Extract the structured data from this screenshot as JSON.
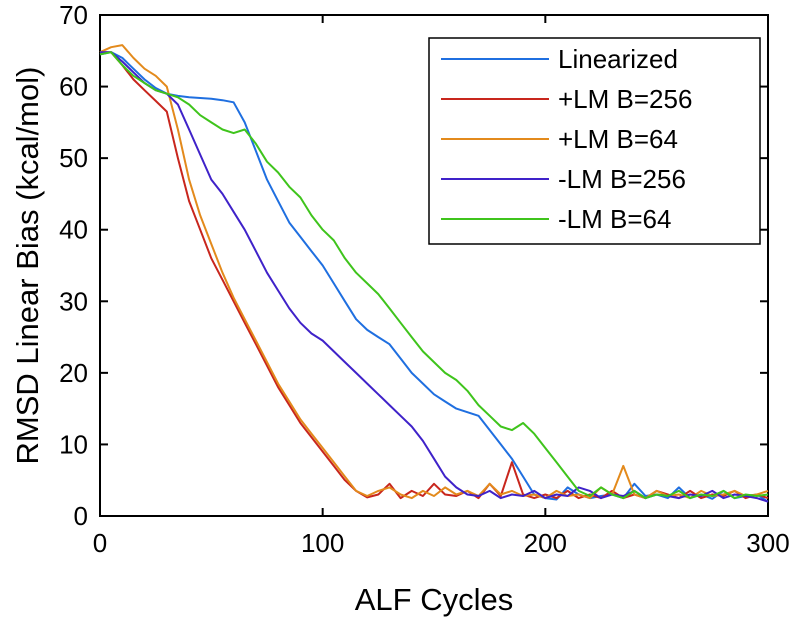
{
  "chart_data": {
    "type": "line",
    "title": "",
    "xlabel": "ALF Cycles",
    "ylabel": "RMSD Linear Bias (kcal/mol)",
    "xlim": [
      0,
      300
    ],
    "ylim": [
      0,
      70
    ],
    "xticks": [
      0,
      100,
      200,
      300
    ],
    "yticks": [
      0,
      10,
      20,
      30,
      40,
      50,
      60,
      70
    ],
    "grid": false,
    "legend_position": "top-right",
    "series": [
      {
        "name": "Linearized",
        "color": "#1f6fe0",
        "x": [
          0,
          5,
          10,
          15,
          20,
          25,
          30,
          35,
          40,
          45,
          50,
          55,
          60,
          65,
          70,
          75,
          80,
          85,
          90,
          95,
          100,
          105,
          110,
          115,
          120,
          125,
          130,
          135,
          140,
          145,
          150,
          155,
          160,
          165,
          170,
          175,
          180,
          185,
          190,
          195,
          200,
          205,
          210,
          215,
          220,
          225,
          230,
          235,
          240,
          245,
          250,
          255,
          260,
          265,
          270,
          275,
          280,
          285,
          290,
          295,
          300
        ],
        "y": [
          64.5,
          64.8,
          64,
          62.5,
          61,
          59.8,
          59,
          58.7,
          58.5,
          58.4,
          58.3,
          58.1,
          57.8,
          55,
          51,
          47,
          44,
          41,
          39,
          37,
          35,
          32.5,
          30,
          27.5,
          26,
          25,
          24,
          22,
          20,
          18.5,
          17,
          16,
          15,
          14.5,
          14,
          12,
          10,
          8,
          5.5,
          3,
          2.5,
          2.3,
          4,
          3,
          2.5,
          2.8,
          3,
          2.5,
          4.5,
          2.8,
          3,
          2.5,
          4,
          2.5,
          3,
          2.4,
          3.5,
          2.5,
          2.8,
          3,
          2
        ]
      },
      {
        "name": "+LM B=256",
        "color": "#c8261d",
        "x": [
          0,
          5,
          10,
          15,
          20,
          25,
          30,
          35,
          40,
          45,
          50,
          55,
          60,
          65,
          70,
          75,
          80,
          85,
          90,
          95,
          100,
          105,
          110,
          115,
          120,
          125,
          130,
          135,
          140,
          145,
          150,
          155,
          160,
          165,
          170,
          175,
          180,
          185,
          190,
          195,
          200,
          205,
          210,
          215,
          220,
          225,
          230,
          235,
          240,
          245,
          250,
          255,
          260,
          265,
          270,
          275,
          280,
          285,
          290,
          295,
          300
        ],
        "y": [
          64.8,
          64.8,
          63,
          61,
          59.5,
          58,
          56.5,
          50,
          44,
          40,
          36,
          33,
          30,
          27,
          24,
          21,
          18,
          15.5,
          13,
          11,
          9,
          7,
          5,
          3.5,
          2.6,
          3,
          4.5,
          2.5,
          3.5,
          2.8,
          4.5,
          3,
          2.8,
          3.5,
          2.5,
          4.5,
          2.8,
          7.5,
          3,
          2.5,
          3,
          2.5,
          3.5,
          2.5,
          3,
          2.5,
          3.5,
          2.5,
          3,
          2.5,
          3.5,
          3,
          2.5,
          3.5,
          2.5,
          3,
          2.8,
          3.5,
          2.5,
          3,
          2.5
        ]
      },
      {
        "name": "+LM B=64",
        "color": "#e38a1c",
        "x": [
          0,
          5,
          10,
          15,
          20,
          25,
          30,
          35,
          40,
          45,
          50,
          55,
          60,
          65,
          70,
          75,
          80,
          85,
          90,
          95,
          100,
          105,
          110,
          115,
          120,
          125,
          130,
          135,
          140,
          145,
          150,
          155,
          160,
          165,
          170,
          175,
          180,
          185,
          190,
          195,
          200,
          205,
          210,
          215,
          220,
          225,
          230,
          235,
          240,
          245,
          250,
          255,
          260,
          265,
          270,
          275,
          280,
          285,
          290,
          295,
          300
        ],
        "y": [
          64.8,
          65.5,
          65.8,
          64,
          62.5,
          61.5,
          60,
          54,
          47,
          42,
          38,
          34,
          30.5,
          27.5,
          24.5,
          21.5,
          18.5,
          16,
          13.5,
          11.5,
          9.5,
          7.5,
          5.5,
          3.5,
          2.8,
          3.5,
          4,
          3,
          2.5,
          3.5,
          2.8,
          4,
          3,
          3.5,
          2.8,
          4.5,
          3,
          3.5,
          2.8,
          3,
          2.5,
          3.5,
          2.8,
          3,
          2.5,
          4,
          3,
          7,
          3,
          2.5,
          3.5,
          2.8,
          3,
          2.5,
          3.5,
          2.8,
          3,
          3.5,
          2.8,
          3,
          3.5
        ]
      },
      {
        "name": "-LM B=256",
        "color": "#3f22c9",
        "x": [
          0,
          5,
          10,
          15,
          20,
          25,
          30,
          35,
          40,
          45,
          50,
          55,
          60,
          65,
          70,
          75,
          80,
          85,
          90,
          95,
          100,
          105,
          110,
          115,
          120,
          125,
          130,
          135,
          140,
          145,
          150,
          155,
          160,
          165,
          170,
          175,
          180,
          185,
          190,
          195,
          200,
          205,
          210,
          215,
          220,
          225,
          230,
          235,
          240,
          245,
          250,
          255,
          260,
          265,
          270,
          275,
          280,
          285,
          290,
          295,
          300
        ],
        "y": [
          64.8,
          64.8,
          63.5,
          62,
          60.5,
          59.5,
          59,
          57.5,
          54,
          50.5,
          47,
          45,
          42.5,
          40,
          37,
          34,
          31.5,
          29,
          27,
          25.5,
          24.5,
          23,
          21.5,
          20,
          18.5,
          17,
          15.5,
          14,
          12.5,
          10.5,
          8,
          5.5,
          4,
          3,
          2.8,
          3.5,
          2.5,
          3,
          2.8,
          3.5,
          2.5,
          3,
          2.8,
          4,
          3.5,
          2.5,
          3,
          2.8,
          3.5,
          2.5,
          3,
          2.8,
          2.5,
          3,
          2.8,
          3.5,
          2.5,
          3,
          2.8,
          2.5,
          2
        ]
      },
      {
        "name": "-LM B=64",
        "color": "#3fc41c",
        "x": [
          0,
          5,
          10,
          15,
          20,
          25,
          30,
          35,
          40,
          45,
          50,
          55,
          60,
          65,
          70,
          75,
          80,
          85,
          90,
          95,
          100,
          105,
          110,
          115,
          120,
          125,
          130,
          135,
          140,
          145,
          150,
          155,
          160,
          165,
          170,
          175,
          180,
          185,
          190,
          195,
          200,
          205,
          210,
          215,
          220,
          225,
          230,
          235,
          240,
          245,
          250,
          255,
          260,
          265,
          270,
          275,
          280,
          285,
          290,
          295,
          300
        ],
        "y": [
          64.5,
          64.8,
          63,
          61.5,
          60.5,
          59.5,
          59,
          58.5,
          57.5,
          56,
          55,
          54,
          53.5,
          54,
          52,
          49.5,
          48,
          46,
          44.5,
          42,
          40,
          38.5,
          36,
          34,
          32.5,
          31,
          29,
          27,
          25,
          23,
          21.5,
          20,
          19,
          17.5,
          15.5,
          14,
          12.5,
          12,
          13,
          11.5,
          9.5,
          7.5,
          5.5,
          3.5,
          2.8,
          4,
          3,
          2.5,
          3.5,
          2.5,
          3,
          2.8,
          3.5,
          2.5,
          3,
          2.8,
          3.5,
          2.5,
          3,
          2.8,
          3
        ]
      }
    ]
  }
}
